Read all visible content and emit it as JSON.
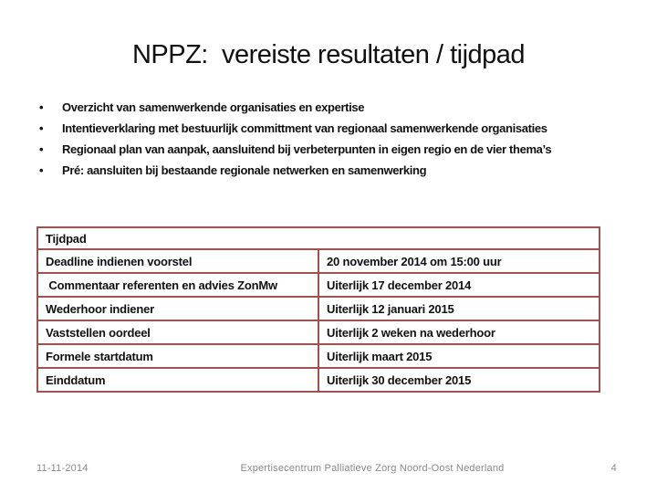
{
  "slide": {
    "title": "NPPZ:  vereiste resultaten / tijdpad",
    "bullets": [
      "Overzicht van samenwerkende organisaties en expertise",
      "Intentieverklaring met bestuurlijk committment van regionaal samenwerkende organisaties",
      "Regionaal plan van aanpak, aansluitend bij verbeterpunten in eigen regio en de vier thema’s",
      "Pré: aansluiten bij bestaande regionale netwerken en samenwerking"
    ],
    "table": {
      "header": "Tijdpad",
      "border_color": "#A0524E",
      "rows": [
        {
          "label": "Deadline indienen voorstel",
          "value": "20 november 2014 om 15:00 uur"
        },
        {
          "label": " Commentaar referenten en advies ZonMw",
          "value": "Uiterlijk 17 december 2014"
        },
        {
          "label": "Wederhoor indiener",
          "value": "Uiterlijk 12 januari 2015"
        },
        {
          "label": "Vaststellen oordeel",
          "value": "Uiterlijk 2 weken na wederhoor"
        },
        {
          "label": "Formele startdatum",
          "value": "Uiterlijk maart 2015"
        },
        {
          "label": "Einddatum",
          "value": "Uiterlijk 30 december 2015"
        }
      ]
    },
    "footer": {
      "date": "11-11-2014",
      "center_text": "Expertisecentrum Palliatieve Zorg Noord-Oost Nederland",
      "page_number": "4"
    }
  }
}
